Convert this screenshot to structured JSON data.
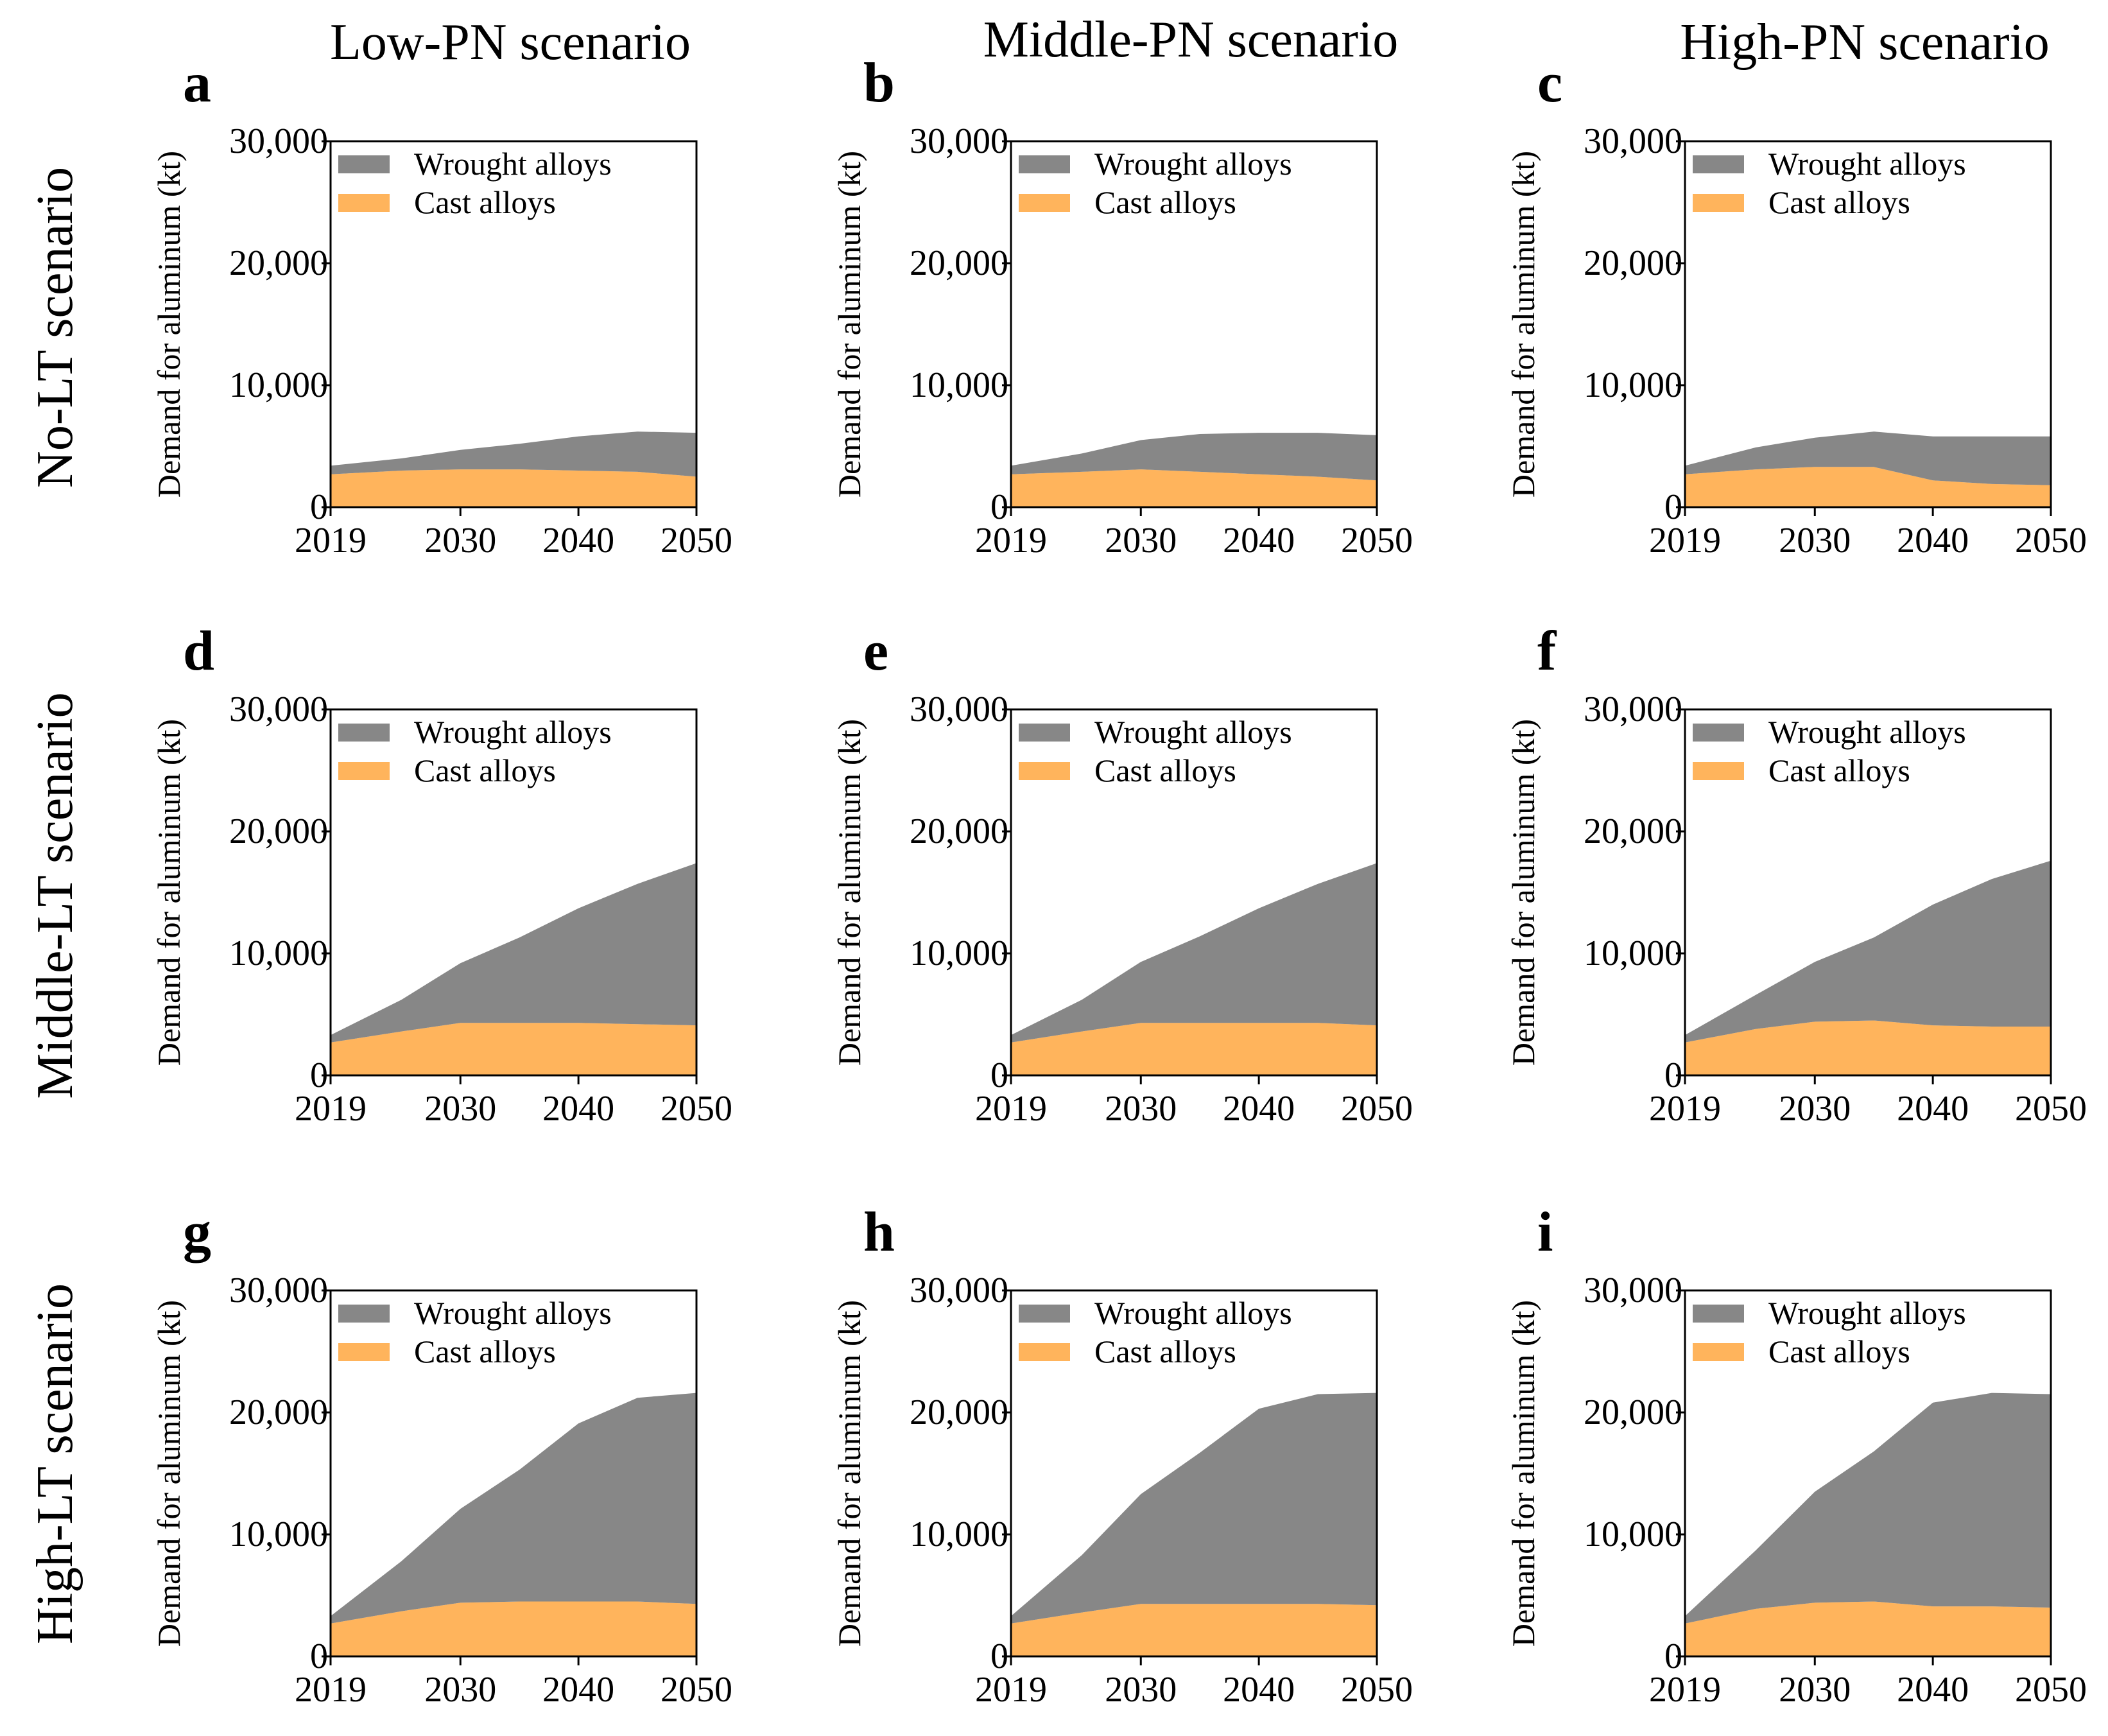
{
  "column_titles": [
    "Low-PN scenario",
    "Middle-PN scenario",
    "High-PN scenario"
  ],
  "row_titles": [
    "No-LT scenario",
    "Middle-LT scenario",
    "High-LT scenario"
  ],
  "colors": {
    "wrought": "#878787",
    "cast": "#FFB45C",
    "axis": "#000000"
  },
  "chart_data": [
    {
      "panel": "a",
      "type": "area",
      "stacked": true,
      "title": "",
      "xlabel": "",
      "ylabel": "Demand for aluminum (kt)",
      "x": [
        2019,
        2025,
        2030,
        2035,
        2040,
        2045,
        2050
      ],
      "xticks": [
        "2019",
        "2030",
        "2040",
        "2050"
      ],
      "yticks": [
        "0",
        "10,000",
        "20,000",
        "30,000"
      ],
      "xlim": [
        2019,
        2050
      ],
      "ylim": [
        0,
        30000
      ],
      "legend": "top-left",
      "series": [
        {
          "name": "Cast alloys",
          "values": [
            2700,
            3000,
            3100,
            3100,
            3000,
            2900,
            2500
          ]
        },
        {
          "name": "Wrought alloys",
          "values": [
            700,
            1000,
            1600,
            2100,
            2800,
            3300,
            3600
          ]
        }
      ]
    },
    {
      "panel": "b",
      "type": "area",
      "stacked": true,
      "title": "",
      "xlabel": "",
      "ylabel": "Demand for aluminum (kt)",
      "x": [
        2019,
        2025,
        2030,
        2035,
        2040,
        2045,
        2050
      ],
      "xticks": [
        "2019",
        "2030",
        "2040",
        "2050"
      ],
      "yticks": [
        "0",
        "10,000",
        "20,000",
        "30,000"
      ],
      "xlim": [
        2019,
        2050
      ],
      "ylim": [
        0,
        30000
      ],
      "legend": "top-left",
      "series": [
        {
          "name": "Cast alloys",
          "values": [
            2700,
            2900,
            3100,
            2900,
            2700,
            2500,
            2200
          ]
        },
        {
          "name": "Wrought alloys",
          "values": [
            700,
            1500,
            2400,
            3100,
            3400,
            3600,
            3700
          ]
        }
      ]
    },
    {
      "panel": "c",
      "type": "area",
      "stacked": true,
      "title": "",
      "xlabel": "",
      "ylabel": "Demand for aluminum (kt)",
      "x": [
        2019,
        2025,
        2030,
        2035,
        2040,
        2045,
        2050
      ],
      "xticks": [
        "2019",
        "2030",
        "2040",
        "2050"
      ],
      "yticks": [
        "0",
        "10,000",
        "20,000",
        "30,000"
      ],
      "xlim": [
        2019,
        2050
      ],
      "ylim": [
        0,
        30000
      ],
      "legend": "top-left",
      "series": [
        {
          "name": "Cast alloys",
          "values": [
            2700,
            3100,
            3300,
            3300,
            2200,
            1900,
            1800
          ]
        },
        {
          "name": "Wrought alloys",
          "values": [
            700,
            1800,
            2400,
            2900,
            3600,
            3900,
            4000
          ]
        }
      ]
    },
    {
      "panel": "d",
      "type": "area",
      "stacked": true,
      "title": "",
      "xlabel": "",
      "ylabel": "Demand for aluminum (kt)",
      "x": [
        2019,
        2025,
        2030,
        2035,
        2040,
        2045,
        2050
      ],
      "xticks": [
        "2019",
        "2030",
        "2040",
        "2050"
      ],
      "yticks": [
        "0",
        "10,000",
        "20,000",
        "30,000"
      ],
      "xlim": [
        2019,
        2050
      ],
      "ylim": [
        0,
        30000
      ],
      "legend": "top-left",
      "series": [
        {
          "name": "Cast alloys",
          "values": [
            2700,
            3600,
            4300,
            4300,
            4300,
            4200,
            4100
          ]
        },
        {
          "name": "Wrought alloys",
          "values": [
            600,
            2600,
            4900,
            7000,
            9400,
            11500,
            13300
          ]
        }
      ]
    },
    {
      "panel": "e",
      "type": "area",
      "stacked": true,
      "title": "",
      "xlabel": "",
      "ylabel": "Demand for aluminum (kt)",
      "x": [
        2019,
        2025,
        2030,
        2035,
        2040,
        2045,
        2050
      ],
      "xticks": [
        "2019",
        "2030",
        "2040",
        "2050"
      ],
      "yticks": [
        "0",
        "10,000",
        "20,000",
        "30,000"
      ],
      "xlim": [
        2019,
        2050
      ],
      "ylim": [
        0,
        30000
      ],
      "legend": "top-left",
      "series": [
        {
          "name": "Cast alloys",
          "values": [
            2700,
            3600,
            4300,
            4300,
            4300,
            4300,
            4100
          ]
        },
        {
          "name": "Wrought alloys",
          "values": [
            600,
            2600,
            5000,
            7100,
            9400,
            11400,
            13300
          ]
        }
      ]
    },
    {
      "panel": "f",
      "type": "area",
      "stacked": true,
      "title": "",
      "xlabel": "",
      "ylabel": "Demand for aluminum (kt)",
      "x": [
        2019,
        2025,
        2030,
        2035,
        2040,
        2045,
        2050
      ],
      "xticks": [
        "2019",
        "2030",
        "2040",
        "2050"
      ],
      "yticks": [
        "0",
        "10,000",
        "20,000",
        "30,000"
      ],
      "xlim": [
        2019,
        2050
      ],
      "ylim": [
        0,
        30000
      ],
      "legend": "top-left",
      "series": [
        {
          "name": "Cast alloys",
          "values": [
            2700,
            3800,
            4400,
            4500,
            4100,
            4000,
            4000
          ]
        },
        {
          "name": "Wrought alloys",
          "values": [
            600,
            2800,
            4900,
            6800,
            9900,
            12100,
            13600
          ]
        }
      ]
    },
    {
      "panel": "g",
      "type": "area",
      "stacked": true,
      "title": "",
      "xlabel": "",
      "ylabel": "Demand for aluminum (kt)",
      "x": [
        2019,
        2025,
        2030,
        2035,
        2040,
        2045,
        2050
      ],
      "xticks": [
        "2019",
        "2030",
        "2040",
        "2050"
      ],
      "yticks": [
        "0",
        "10,000",
        "20,000",
        "30,000"
      ],
      "xlim": [
        2019,
        2050
      ],
      "ylim": [
        0,
        30000
      ],
      "legend": "top-left",
      "series": [
        {
          "name": "Cast alloys",
          "values": [
            2700,
            3700,
            4400,
            4500,
            4500,
            4500,
            4300
          ]
        },
        {
          "name": "Wrought alloys",
          "values": [
            600,
            4100,
            7700,
            10800,
            14600,
            16700,
            17300
          ]
        }
      ]
    },
    {
      "panel": "h",
      "type": "area",
      "stacked": true,
      "title": "",
      "xlabel": "",
      "ylabel": "Demand for aluminum (kt)",
      "x": [
        2019,
        2025,
        2030,
        2035,
        2040,
        2045,
        2050
      ],
      "xticks": [
        "2019",
        "2030",
        "2040",
        "2050"
      ],
      "yticks": [
        "0",
        "10,000",
        "20,000",
        "30,000"
      ],
      "xlim": [
        2019,
        2050
      ],
      "ylim": [
        0,
        30000
      ],
      "legend": "top-left",
      "series": [
        {
          "name": "Cast alloys",
          "values": [
            2700,
            3600,
            4300,
            4300,
            4300,
            4300,
            4200
          ]
        },
        {
          "name": "Wrought alloys",
          "values": [
            600,
            4700,
            9000,
            12400,
            16000,
            17200,
            17400
          ]
        }
      ]
    },
    {
      "panel": "i",
      "type": "area",
      "stacked": true,
      "title": "",
      "xlabel": "",
      "ylabel": "Demand for aluminum (kt)",
      "x": [
        2019,
        2025,
        2030,
        2035,
        2040,
        2045,
        2050
      ],
      "xticks": [
        "2019",
        "2030",
        "2040",
        "2050"
      ],
      "yticks": [
        "0",
        "10,000",
        "20,000",
        "30,000"
      ],
      "xlim": [
        2019,
        2050
      ],
      "ylim": [
        0,
        30000
      ],
      "legend": "top-left",
      "series": [
        {
          "name": "Cast alloys",
          "values": [
            2700,
            3900,
            4400,
            4500,
            4100,
            4100,
            4000
          ]
        },
        {
          "name": "Wrought alloys",
          "values": [
            600,
            4800,
            9100,
            12300,
            16700,
            17500,
            17500
          ]
        }
      ]
    }
  ]
}
